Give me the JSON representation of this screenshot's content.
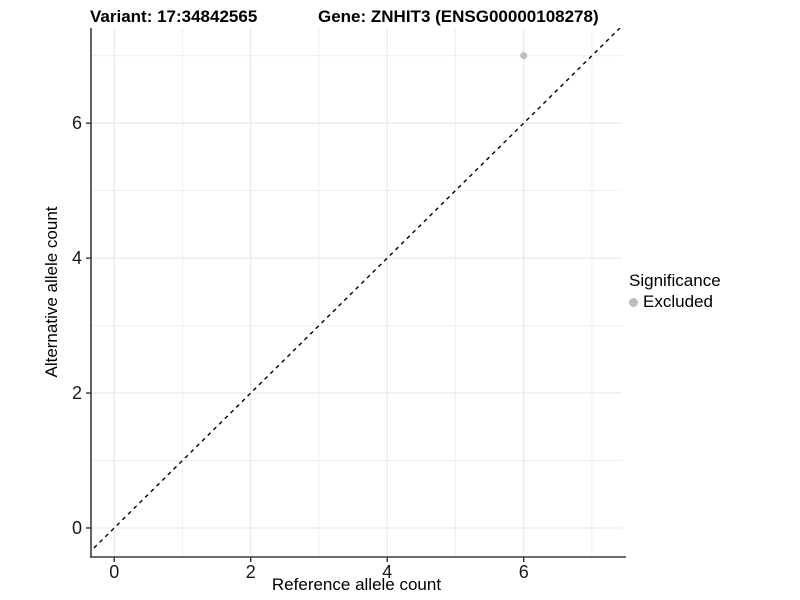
{
  "chart_data": {
    "type": "scatter",
    "title_left": "Variant: 17:34842565",
    "title_right": "Gene: ZNHIT3 (ENSG00000108278)",
    "xlabel": "Reference allele count",
    "ylabel": "Alternative allele count",
    "xlim": [
      -0.34,
      7.44
    ],
    "ylim": [
      -0.43,
      7.41
    ],
    "x_ticks": [
      0,
      2,
      4,
      6
    ],
    "y_ticks": [
      0,
      2,
      4,
      6
    ],
    "x_minor_ticks": [
      1,
      3,
      5,
      7
    ],
    "y_minor_ticks": [
      1,
      3,
      5,
      7
    ],
    "grid": "on",
    "points": [
      {
        "x": 6,
        "y": 7,
        "significance": "Excluded"
      }
    ],
    "identity_line": {
      "slope": 1,
      "intercept": 0,
      "style": "dashed"
    },
    "legend": {
      "title": "Significance",
      "position": "right",
      "items": [
        {
          "label": "Excluded",
          "color": "#bdbdbd"
        }
      ]
    },
    "colors": {
      "point": "#bdbdbd",
      "identity_line": "#000000",
      "grid_major": "#e4e4e4",
      "grid_minor": "#efefef",
      "axis_line": "#3c3c3c",
      "tick_mark": "#333333",
      "tick_label": "#1a1a1a",
      "title_text": "#000000"
    }
  }
}
